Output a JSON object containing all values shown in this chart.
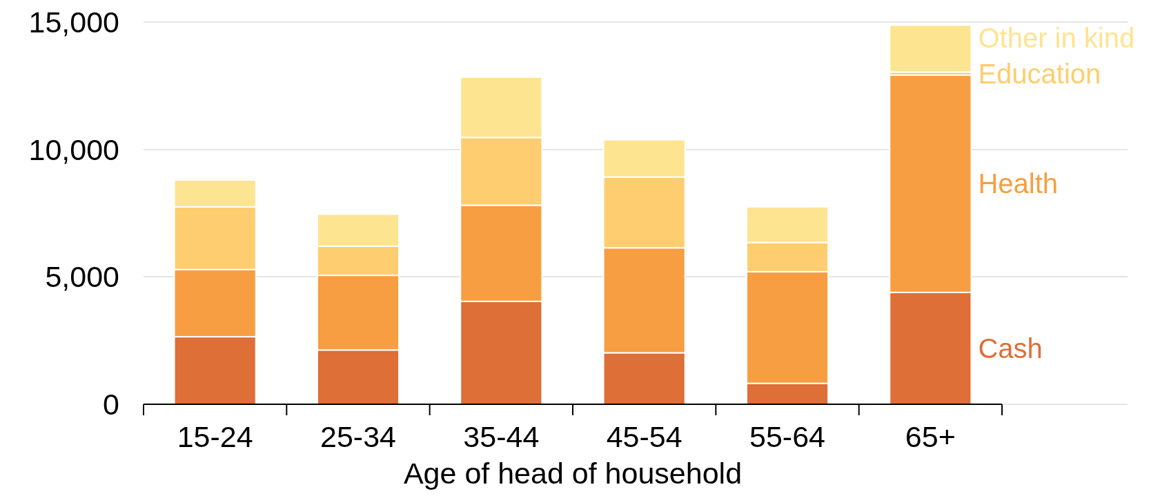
{
  "chart_data": {
    "type": "bar",
    "stacked": true,
    "xlabel": "Age of head of household",
    "categories": [
      "15-24",
      "25-34",
      "35-44",
      "45-54",
      "55-64",
      "65+"
    ],
    "series": [
      {
        "name": "Cash",
        "color": "#de6f37",
        "values": [
          2650,
          2130,
          4040,
          2020,
          820,
          4390
        ]
      },
      {
        "name": "Health",
        "color": "#f89e42",
        "values": [
          2640,
          2930,
          3770,
          4120,
          4380,
          8530
        ]
      },
      {
        "name": "Education",
        "color": "#fdcd6f",
        "values": [
          2460,
          1140,
          2660,
          2780,
          1150,
          120
        ]
      },
      {
        "name": "Other in kind",
        "color": "#fde490",
        "values": [
          1050,
          1260,
          2370,
          1460,
          1400,
          1840
        ]
      }
    ],
    "ylim": [
      0,
      15000
    ],
    "yticks": [
      {
        "value": 0,
        "label": "0"
      },
      {
        "value": 5000,
        "label": "5,000"
      },
      {
        "value": 10000,
        "label": "10,000"
      },
      {
        "value": 15000,
        "label": "15,000"
      }
    ],
    "grid": "y"
  }
}
